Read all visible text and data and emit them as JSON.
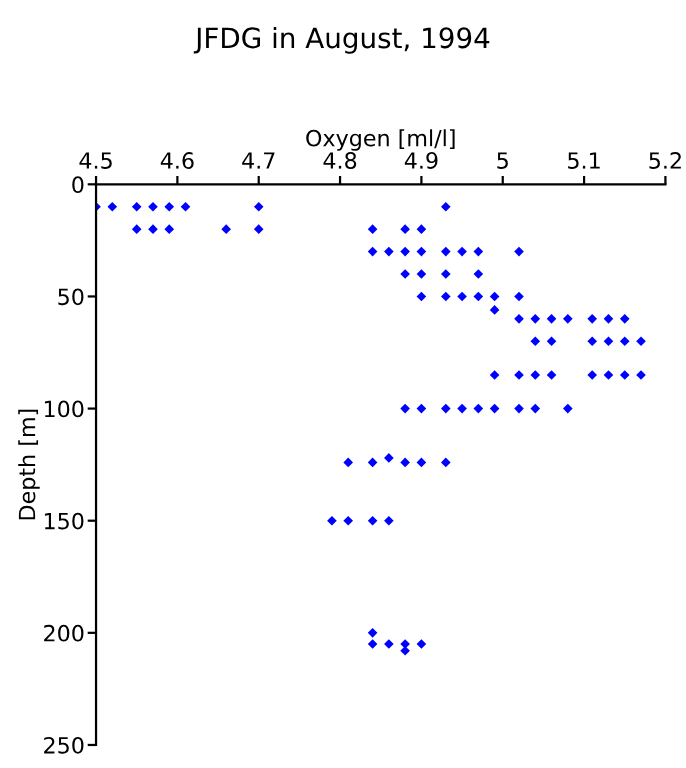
{
  "chart_data": {
    "type": "scatter",
    "title": "JFDG in August, 1994",
    "xlabel": "Oxygen [ml/l]",
    "ylabel": "Depth [m]",
    "xlim": [
      4.5,
      5.2
    ],
    "xticks": [
      4.5,
      4.6,
      4.7,
      4.8,
      4.9,
      5,
      5.1,
      5.2
    ],
    "ylim": [
      250,
      0
    ],
    "yticks": [
      0,
      50,
      100,
      150,
      200,
      250
    ],
    "grid": false,
    "legend": false,
    "marker": "diamond",
    "series": [
      {
        "color": "#0000ff",
        "x": [
          4.5,
          4.52,
          4.55,
          4.57,
          4.59,
          4.61,
          4.7,
          4.93,
          4.55,
          4.57,
          4.59,
          4.66,
          4.7,
          4.84,
          4.88,
          4.9,
          4.84,
          4.86,
          4.88,
          4.9,
          4.93,
          4.95,
          4.97,
          5.02,
          4.88,
          4.9,
          4.93,
          4.97,
          4.9,
          4.93,
          4.95,
          4.97,
          4.99,
          5.02,
          4.99,
          5.02,
          5.04,
          5.06,
          5.08,
          5.11,
          5.13,
          5.15,
          5.04,
          5.06,
          5.11,
          5.13,
          5.15,
          5.17,
          4.99,
          5.02,
          5.04,
          5.06,
          5.11,
          5.13,
          5.15,
          5.17,
          4.88,
          4.9,
          4.93,
          4.95,
          4.97,
          4.99,
          5.02,
          5.04,
          5.08,
          4.81,
          4.84,
          4.86,
          4.88,
          4.9,
          4.93,
          4.79,
          4.81,
          4.84,
          4.86,
          4.84,
          4.84,
          4.86,
          4.88,
          4.9,
          4.88
        ],
        "values": [
          10,
          10,
          10,
          10,
          10,
          10,
          10,
          10,
          20,
          20,
          20,
          20,
          20,
          20,
          20,
          20,
          30,
          30,
          30,
          30,
          30,
          30,
          30,
          30,
          40,
          40,
          40,
          40,
          50,
          50,
          50,
          50,
          50,
          50,
          56,
          60,
          60,
          60,
          60,
          60,
          60,
          60,
          70,
          70,
          70,
          70,
          70,
          70,
          85,
          85,
          85,
          85,
          85,
          85,
          85,
          85,
          100,
          100,
          100,
          100,
          100,
          100,
          100,
          100,
          100,
          124,
          124,
          122,
          124,
          124,
          124,
          150,
          150,
          150,
          150,
          200,
          205,
          205,
          205,
          205,
          208
        ]
      }
    ]
  }
}
